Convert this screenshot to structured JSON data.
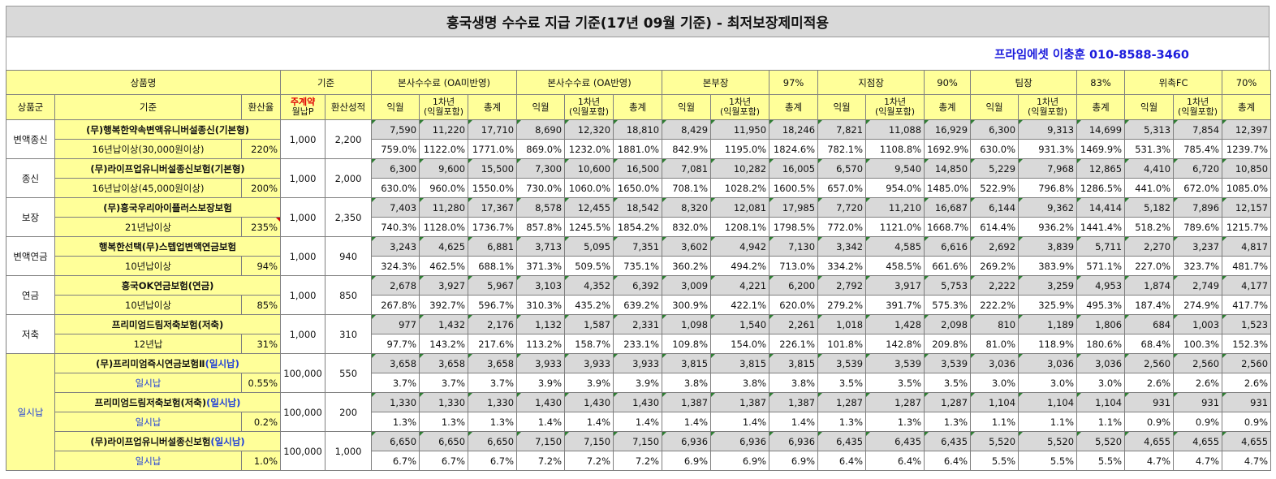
{
  "title": "흥국생명 수수료 지급 기준(17년 09월 기준) - 최저보장제미적용",
  "contact": "프라임에셋 이충훈 010-8588-3460",
  "header1": {
    "product": "상품명",
    "basis": "기준",
    "groups": [
      {
        "name": "본사수수료 (OA미반영)",
        "pct": ""
      },
      {
        "name": "본사수수료 (OA반영)",
        "pct": ""
      },
      {
        "name": "본부장",
        "pct": "97%"
      },
      {
        "name": "지점장",
        "pct": "90%"
      },
      {
        "name": "팀장",
        "pct": "83%"
      },
      {
        "name": "위촉FC",
        "pct": "70%"
      }
    ]
  },
  "header2": {
    "category": "상품군",
    "basis": "기준",
    "rate": "환산율",
    "premium_line1": "주계약",
    "premium_line2": "월납P",
    "score": "환산성적",
    "col1": "익월",
    "col2_line1": "1차년",
    "col2_line2": "(익월포함)",
    "col3": "총계"
  },
  "rows": [
    {
      "category": "변액종신",
      "name": "(무)행복한약속변액유니버설종신(기본형)",
      "name_blue": "",
      "sub": "16년납이상(30,000원이상)",
      "rate": "220%",
      "premium": "1,000",
      "score": "2,200",
      "amt": [
        "7,590",
        "11,220",
        "17,710",
        "8,690",
        "12,320",
        "18,810",
        "8,429",
        "11,950",
        "18,246",
        "7,821",
        "11,088",
        "16,929",
        "6,300",
        "9,313",
        "14,699",
        "5,313",
        "7,854",
        "12,397"
      ],
      "pct": [
        "759.0%",
        "1122.0%",
        "1771.0%",
        "869.0%",
        "1232.0%",
        "1881.0%",
        "842.9%",
        "1195.0%",
        "1824.6%",
        "782.1%",
        "1108.8%",
        "1692.9%",
        "630.0%",
        "931.3%",
        "1469.9%",
        "531.3%",
        "785.4%",
        "1239.7%"
      ]
    },
    {
      "category": "종신",
      "name": "(무)라이프업유니버설종신보험(기본형)",
      "name_blue": "",
      "sub": "16년납이상(45,000원이상)",
      "rate": "200%",
      "premium": "1,000",
      "score": "2,000",
      "amt": [
        "6,300",
        "9,600",
        "15,500",
        "7,300",
        "10,600",
        "16,500",
        "7,081",
        "10,282",
        "16,005",
        "6,570",
        "9,540",
        "14,850",
        "5,229",
        "7,968",
        "12,865",
        "4,410",
        "6,720",
        "10,850"
      ],
      "pct": [
        "630.0%",
        "960.0%",
        "1550.0%",
        "730.0%",
        "1060.0%",
        "1650.0%",
        "708.1%",
        "1028.2%",
        "1600.5%",
        "657.0%",
        "954.0%",
        "1485.0%",
        "522.9%",
        "796.8%",
        "1286.5%",
        "441.0%",
        "672.0%",
        "1085.0%"
      ]
    },
    {
      "category": "보장",
      "name": "(무)흥국우리아이플러스보장보험",
      "name_blue": "",
      "sub": "21년납이상",
      "rate": "235%",
      "premium": "1,000",
      "score": "2,350",
      "amt": [
        "7,403",
        "11,280",
        "17,367",
        "8,578",
        "12,455",
        "18,542",
        "8,320",
        "12,081",
        "17,985",
        "7,720",
        "11,210",
        "16,687",
        "6,144",
        "9,362",
        "14,414",
        "5,182",
        "7,896",
        "12,157"
      ],
      "pct": [
        "740.3%",
        "1128.0%",
        "1736.7%",
        "857.8%",
        "1245.5%",
        "1854.2%",
        "832.0%",
        "1208.1%",
        "1798.5%",
        "772.0%",
        "1121.0%",
        "1668.7%",
        "614.4%",
        "936.2%",
        "1441.4%",
        "518.2%",
        "789.6%",
        "1215.7%"
      ]
    },
    {
      "category": "변액연금",
      "name": "행복한선택(무)스텝업변액연금보험",
      "name_blue": "",
      "sub": "10년납이상",
      "rate": "94%",
      "premium": "1,000",
      "score": "940",
      "amt": [
        "3,243",
        "4,625",
        "6,881",
        "3,713",
        "5,095",
        "7,351",
        "3,602",
        "4,942",
        "7,130",
        "3,342",
        "4,585",
        "6,616",
        "2,692",
        "3,839",
        "5,711",
        "2,270",
        "3,237",
        "4,817"
      ],
      "pct": [
        "324.3%",
        "462.5%",
        "688.1%",
        "371.3%",
        "509.5%",
        "735.1%",
        "360.2%",
        "494.2%",
        "713.0%",
        "334.2%",
        "458.5%",
        "661.6%",
        "269.2%",
        "383.9%",
        "571.1%",
        "227.0%",
        "323.7%",
        "481.7%"
      ]
    },
    {
      "category": "연금",
      "name": "흥국OK연금보험(연금)",
      "name_blue": "",
      "sub": "10년납이상",
      "rate": "85%",
      "premium": "1,000",
      "score": "850",
      "amt": [
        "2,678",
        "3,927",
        "5,967",
        "3,103",
        "4,352",
        "6,392",
        "3,009",
        "4,221",
        "6,200",
        "2,792",
        "3,917",
        "5,753",
        "2,222",
        "3,259",
        "4,953",
        "1,874",
        "2,749",
        "4,177"
      ],
      "pct": [
        "267.8%",
        "392.7%",
        "596.7%",
        "310.3%",
        "435.2%",
        "639.2%",
        "300.9%",
        "422.1%",
        "620.0%",
        "279.2%",
        "391.7%",
        "575.3%",
        "222.2%",
        "325.9%",
        "495.3%",
        "187.4%",
        "274.9%",
        "417.7%"
      ]
    },
    {
      "category": "저축",
      "name": "프리미엄드림저축보험(저축)",
      "name_blue": "",
      "sub": "12년납",
      "rate": "31%",
      "premium": "1,000",
      "score": "310",
      "amt": [
        "977",
        "1,432",
        "2,176",
        "1,132",
        "1,587",
        "2,331",
        "1,098",
        "1,540",
        "2,261",
        "1,018",
        "1,428",
        "2,098",
        "810",
        "1,189",
        "1,806",
        "684",
        "1,003",
        "1,523"
      ],
      "pct": [
        "97.7%",
        "143.2%",
        "217.6%",
        "113.2%",
        "158.7%",
        "233.1%",
        "109.8%",
        "154.0%",
        "226.1%",
        "101.8%",
        "142.8%",
        "209.8%",
        "81.0%",
        "118.9%",
        "180.6%",
        "68.4%",
        "100.3%",
        "152.3%"
      ]
    },
    {
      "category": "일시납",
      "name": "(무)프리미엄즉시연금보험Ⅱ",
      "name_blue": "(일시납)",
      "sub": "일시납",
      "rate": "0.55%",
      "premium": "100,000",
      "score": "550",
      "amt": [
        "3,658",
        "3,658",
        "3,658",
        "3,933",
        "3,933",
        "3,933",
        "3,815",
        "3,815",
        "3,815",
        "3,539",
        "3,539",
        "3,539",
        "3,036",
        "3,036",
        "3,036",
        "2,560",
        "2,560",
        "2,560"
      ],
      "pct": [
        "3.7%",
        "3.7%",
        "3.7%",
        "3.9%",
        "3.9%",
        "3.9%",
        "3.8%",
        "3.8%",
        "3.8%",
        "3.5%",
        "3.5%",
        "3.5%",
        "3.0%",
        "3.0%",
        "3.0%",
        "2.6%",
        "2.6%",
        "2.6%"
      ]
    },
    {
      "category": "",
      "name": "프리미엄드림저축보험(저축)",
      "name_blue": "(일시납)",
      "sub": "일시납",
      "rate": "0.2%",
      "premium": "100,000",
      "score": "200",
      "amt": [
        "1,330",
        "1,330",
        "1,330",
        "1,430",
        "1,430",
        "1,430",
        "1,387",
        "1,387",
        "1,387",
        "1,287",
        "1,287",
        "1,287",
        "1,104",
        "1,104",
        "1,104",
        "931",
        "931",
        "931"
      ],
      "pct": [
        "1.3%",
        "1.3%",
        "1.3%",
        "1.4%",
        "1.4%",
        "1.4%",
        "1.4%",
        "1.4%",
        "1.4%",
        "1.3%",
        "1.3%",
        "1.3%",
        "1.1%",
        "1.1%",
        "1.1%",
        "0.9%",
        "0.9%",
        "0.9%"
      ]
    },
    {
      "category": "",
      "name": "(무)라이프업유니버설종신보험",
      "name_blue": "(일시납)",
      "sub": "일시납",
      "rate": "1.0%",
      "premium": "100,000",
      "score": "1,000",
      "amt": [
        "6,650",
        "6,650",
        "6,650",
        "7,150",
        "7,150",
        "7,150",
        "6,936",
        "6,936",
        "6,936",
        "6,435",
        "6,435",
        "6,435",
        "5,520",
        "5,520",
        "5,520",
        "4,655",
        "4,655",
        "4,655"
      ],
      "pct": [
        "6.7%",
        "6.7%",
        "6.7%",
        "7.2%",
        "7.2%",
        "7.2%",
        "6.9%",
        "6.9%",
        "6.9%",
        "6.4%",
        "6.4%",
        "6.4%",
        "5.5%",
        "5.5%",
        "5.5%",
        "4.7%",
        "4.7%",
        "4.7%"
      ]
    }
  ]
}
